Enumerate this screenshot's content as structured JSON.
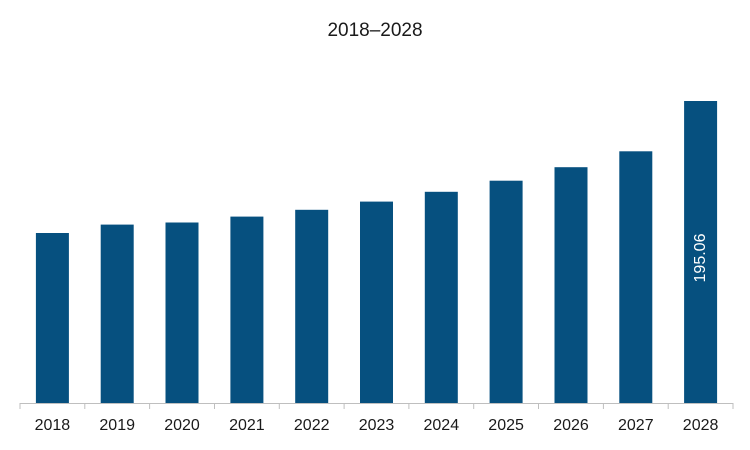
{
  "chart_data": {
    "type": "bar",
    "title": "2018–2028",
    "xlabel": "",
    "ylabel": "",
    "categories": [
      "2018",
      "2019",
      "2020",
      "2021",
      "2022",
      "2023",
      "2024",
      "2025",
      "2026",
      "2027",
      "2028"
    ],
    "values": [
      109.8,
      115.2,
      116.6,
      120.4,
      124.8,
      130.1,
      136.4,
      143.6,
      152.3,
      162.6,
      195.06
    ],
    "data_labels": [
      {
        "index": 10,
        "text": "195.06"
      }
    ],
    "ylim": [
      0,
      195.06
    ],
    "grid": false,
    "legend": "none",
    "colors": {
      "bar": "#06507f",
      "axis": "#bfbfbf",
      "text": "#1a1a1a",
      "data_label": "#ffffff"
    }
  }
}
